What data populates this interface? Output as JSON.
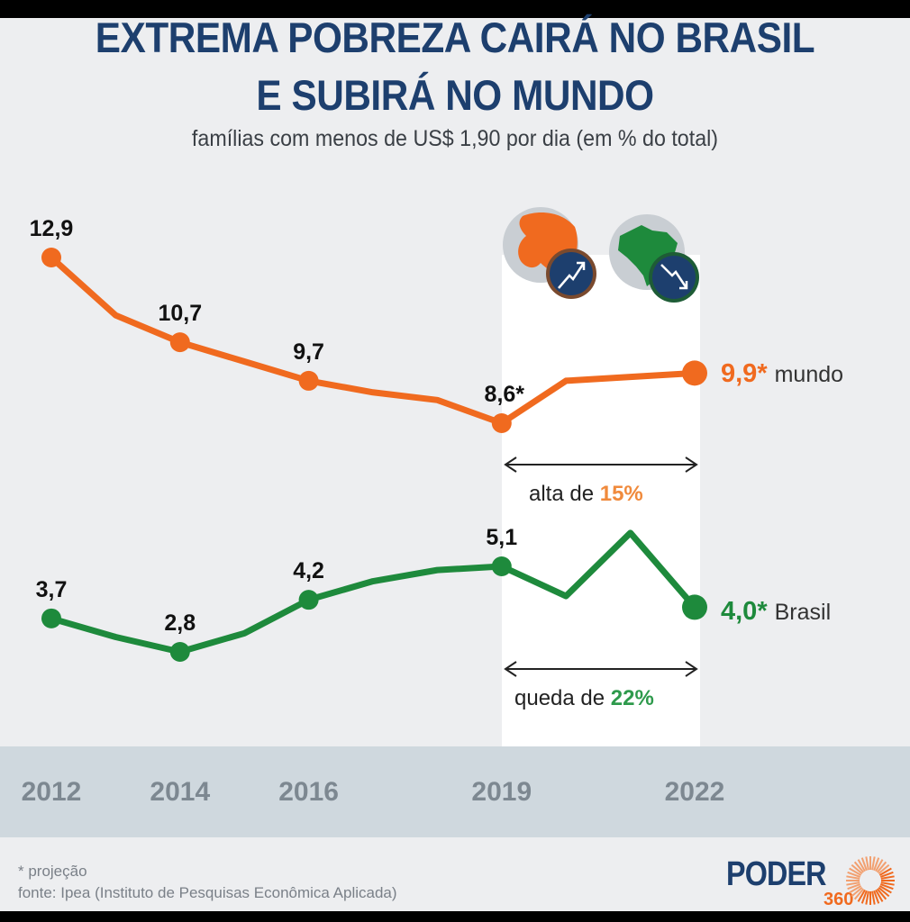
{
  "header": {
    "title_line1": "EXTREMA POBREZA CAIRÁ NO BRASIL",
    "title_line2": "E SUBIRÁ NO MUNDO",
    "subtitle": "famílias com menos de US$ 1,90 por dia (em % do total)"
  },
  "chart_data": {
    "type": "line",
    "title": "EXTREMA POBREZA CAIRÁ NO BRASIL E SUBIRÁ NO MUNDO",
    "subtitle": "famílias com menos de US$ 1,90 por dia (em % do total)",
    "xlabel": "",
    "ylabel": "% do total",
    "x": [
      2012,
      2013,
      2014,
      2015,
      2016,
      2017,
      2018,
      2019,
      2020,
      2021,
      2022
    ],
    "x_tick_labels": [
      "2012",
      "2014",
      "2016",
      "2019",
      "2022"
    ],
    "x_ticks": [
      2012,
      2014,
      2016,
      2019,
      2022
    ],
    "ylim": [
      0,
      14
    ],
    "grid": false,
    "legend": "inline-right",
    "highlight_range": [
      2019,
      2022
    ],
    "series": [
      {
        "name": "mundo",
        "color": "#f06a1f",
        "values": [
          12.9,
          11.4,
          10.7,
          10.2,
          9.7,
          9.4,
          9.2,
          8.6,
          9.7,
          9.8,
          9.9
        ],
        "marked": [
          {
            "x": 2012,
            "label": "12,9"
          },
          {
            "x": 2014,
            "label": "10,7"
          },
          {
            "x": 2016,
            "label": "9,7"
          },
          {
            "x": 2019,
            "label": "8,6*"
          },
          {
            "x": 2022,
            "label": "9,9*",
            "end": true
          }
        ]
      },
      {
        "name": "Brasil",
        "color": "#1e8a3c",
        "values": [
          3.7,
          3.2,
          2.8,
          3.3,
          4.2,
          4.7,
          5.0,
          5.1,
          4.3,
          6.0,
          4.0
        ],
        "marked": [
          {
            "x": 2012,
            "label": "3,7"
          },
          {
            "x": 2014,
            "label": "2,8"
          },
          {
            "x": 2016,
            "label": "4,2"
          },
          {
            "x": 2019,
            "label": "5,1"
          },
          {
            "x": 2022,
            "label": "4,0*",
            "end": true
          }
        ]
      }
    ],
    "annotations": [
      {
        "text": "alta de ",
        "pct": "15%",
        "series": "mundo",
        "color": "#f08a3c"
      },
      {
        "text": "queda de ",
        "pct": "22%",
        "series": "Brasil",
        "color": "#2e9a4c"
      }
    ]
  },
  "legend_labels": {
    "mundo_value": "9,9*",
    "mundo_name": "mundo",
    "brasil_value": "4,0*",
    "brasil_name": "Brasil"
  },
  "annotations": {
    "mundo_text": "alta de ",
    "mundo_pct": "15%",
    "brasil_text": "queda de ",
    "brasil_pct": "22%"
  },
  "icons": {
    "world": "globe-up-icon",
    "brazil": "brazil-map-down-icon"
  },
  "footer": {
    "note": "* projeção",
    "source": "fonte: Ipea (Instituto de Pesquisas Econômica Aplicada)",
    "logo_word": "PODER",
    "logo_num": "360"
  },
  "colors": {
    "title": "#1d3f6e",
    "orange": "#f06a1f",
    "green": "#1e8a3c",
    "axis_band": "#cfd8de",
    "background": "#edeef0"
  }
}
